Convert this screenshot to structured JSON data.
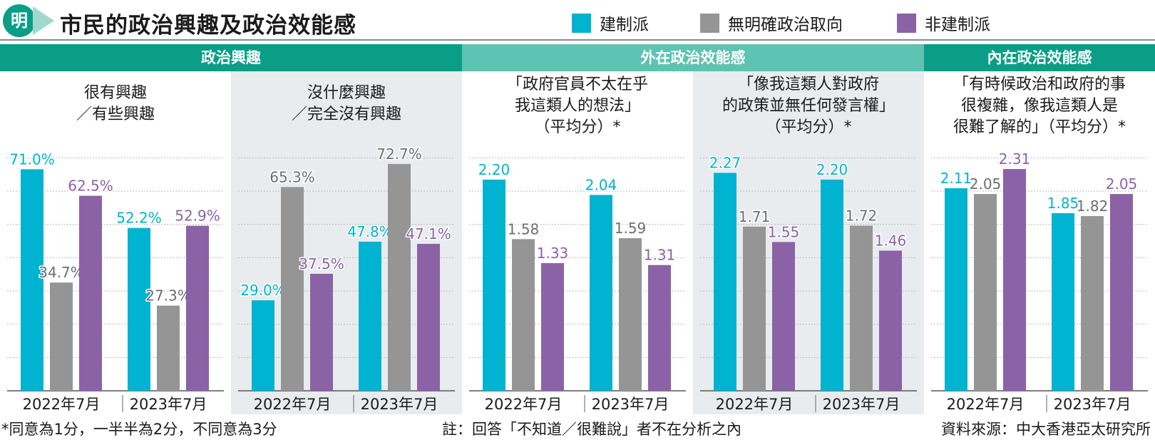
{
  "header": {
    "logo_text": "明",
    "title": "市民的政治興趣及政治效能感",
    "legend": [
      {
        "label": "建制派",
        "color": "#00b3d0"
      },
      {
        "label": "無明確政治取向",
        "color": "#959595"
      },
      {
        "label": "非建制派",
        "color": "#8c62a6"
      }
    ]
  },
  "groups": [
    {
      "label": "政治興趣",
      "color": "#0a9e86"
    },
    {
      "label": "外在政治效能感",
      "color": "#5dc3b2"
    },
    {
      "label": "內在政治效能感",
      "color": "#0a9e86"
    }
  ],
  "panels": [
    {
      "subtitle": [
        "很有興趣",
        "／有些興趣"
      ],
      "shaded": false
    },
    {
      "subtitle": [
        "沒什麼興趣",
        "／完全沒有興趣"
      ],
      "shaded": true
    },
    {
      "subtitle": [
        "「政府官員不太在乎",
        "我這類人的想法」",
        "（平均分）*"
      ],
      "shaded": false
    },
    {
      "subtitle": [
        "「像我這類人對政府",
        "的政策並無任何發言權」",
        "（平均分）*"
      ],
      "shaded": true
    },
    {
      "subtitle": [
        "「有時候政治和政府的事",
        "很複雜，像我這類人是",
        "很難了解的」（平均分）*"
      ],
      "shaded": false
    }
  ],
  "chart_data": [
    {
      "type": "bar",
      "title": "很有興趣／有些興趣",
      "categories": [
        "2022年7月",
        "2023年7月"
      ],
      "ylim": [
        0,
        80
      ],
      "unit": "%",
      "series": [
        {
          "name": "建制派",
          "values": [
            71.0,
            52.2
          ],
          "labels": [
            "71.0%",
            "52.2%"
          ]
        },
        {
          "name": "無明確政治取向",
          "values": [
            34.7,
            27.3
          ],
          "labels": [
            "34.7%",
            "27.3%"
          ]
        },
        {
          "name": "非建制派",
          "values": [
            62.5,
            52.9
          ],
          "labels": [
            "62.5%",
            "52.9%"
          ]
        }
      ]
    },
    {
      "type": "bar",
      "title": "沒什麼興趣／完全沒有興趣",
      "categories": [
        "2022年7月",
        "2023年7月"
      ],
      "ylim": [
        0,
        80
      ],
      "unit": "%",
      "series": [
        {
          "name": "建制派",
          "values": [
            29.0,
            47.8
          ],
          "labels": [
            "29.0%",
            "47.8%"
          ]
        },
        {
          "name": "無明確政治取向",
          "values": [
            65.3,
            72.7
          ],
          "labels": [
            "65.3%",
            "72.7%"
          ]
        },
        {
          "name": "非建制派",
          "values": [
            37.5,
            47.1
          ],
          "labels": [
            "37.5%",
            "47.1%"
          ]
        }
      ]
    },
    {
      "type": "bar",
      "title": "「政府官員不太在乎我這類人的想法」（平均分）*",
      "categories": [
        "2022年7月",
        "2023年7月"
      ],
      "ylim": [
        0,
        2.6
      ],
      "series": [
        {
          "name": "建制派",
          "values": [
            2.2,
            2.04
          ],
          "labels": [
            "2.20",
            "2.04"
          ]
        },
        {
          "name": "無明確政治取向",
          "values": [
            1.58,
            1.59
          ],
          "labels": [
            "1.58",
            "1.59"
          ]
        },
        {
          "name": "非建制派",
          "values": [
            1.33,
            1.31
          ],
          "labels": [
            "1.33",
            "1.31"
          ]
        }
      ]
    },
    {
      "type": "bar",
      "title": "「像我這類人對政府的政策並無任何發言權」（平均分）*",
      "categories": [
        "2022年7月",
        "2023年7月"
      ],
      "ylim": [
        0,
        2.6
      ],
      "series": [
        {
          "name": "建制派",
          "values": [
            2.27,
            2.2
          ],
          "labels": [
            "2.27",
            "2.20"
          ]
        },
        {
          "name": "無明確政治取向",
          "values": [
            1.71,
            1.72
          ],
          "labels": [
            "1.71",
            "1.72"
          ]
        },
        {
          "name": "非建制派",
          "values": [
            1.55,
            1.46
          ],
          "labels": [
            "1.55",
            "1.46"
          ]
        }
      ]
    },
    {
      "type": "bar",
      "title": "「有時候政治和政府的事很複雜，像我這類人是很難了解的」（平均分）*",
      "categories": [
        "2022年7月",
        "2023年7月"
      ],
      "ylim": [
        0,
        2.6
      ],
      "series": [
        {
          "name": "建制派",
          "values": [
            2.11,
            1.85
          ],
          "labels": [
            "2.11",
            "1.85"
          ]
        },
        {
          "name": "無明確政治取向",
          "values": [
            2.05,
            1.82
          ],
          "labels": [
            "2.05",
            "1.82"
          ]
        },
        {
          "name": "非建制派",
          "values": [
            2.31,
            2.05
          ],
          "labels": [
            "2.31",
            "2.05"
          ]
        }
      ]
    }
  ],
  "footer": {
    "footnote": "*同意為1分，一半半為2分，不同意為3分",
    "note": "註：回答「不知道／很難說」者不在分析之內",
    "source": "資料來源：中大香港亞太研究所"
  }
}
